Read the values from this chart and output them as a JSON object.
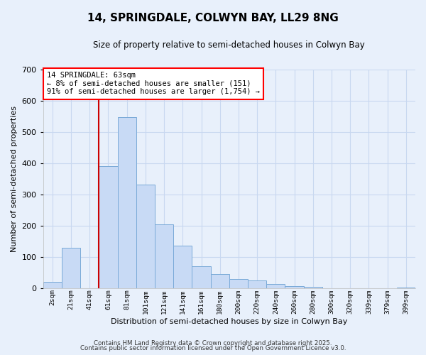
{
  "title": "14, SPRINGDALE, COLWYN BAY, LL29 8NG",
  "subtitle": "Size of property relative to semi-detached houses in Colwyn Bay",
  "xlabel": "Distribution of semi-detached houses by size in Colwyn Bay",
  "ylabel": "Number of semi-detached properties",
  "bar_color": "#c8daf5",
  "bar_edge_color": "#7aaad8",
  "grid_color": "#c8d8f0",
  "background_color": "#e8f0fb",
  "annotation_text": "14 SPRINGDALE: 63sqm\n← 8% of semi-detached houses are smaller (151)\n91% of semi-detached houses are larger (1,754) →",
  "vline_color": "#cc0000",
  "categories": [
    "2sqm",
    "21sqm",
    "41sqm",
    "61sqm",
    "81sqm",
    "101sqm",
    "121sqm",
    "141sqm",
    "161sqm",
    "180sqm",
    "200sqm",
    "220sqm",
    "240sqm",
    "260sqm",
    "280sqm",
    "300sqm",
    "320sqm",
    "339sqm",
    "379sqm",
    "399sqm"
  ],
  "values": [
    20,
    130,
    0,
    390,
    548,
    332,
    204,
    136,
    70,
    46,
    30,
    25,
    14,
    6,
    5,
    0,
    0,
    0,
    0,
    2
  ],
  "ylim": [
    0,
    700
  ],
  "yticks": [
    0,
    100,
    200,
    300,
    400,
    500,
    600,
    700
  ],
  "footer1": "Contains HM Land Registry data © Crown copyright and database right 2025.",
  "footer2": "Contains public sector information licensed under the Open Government Licence v3.0."
}
